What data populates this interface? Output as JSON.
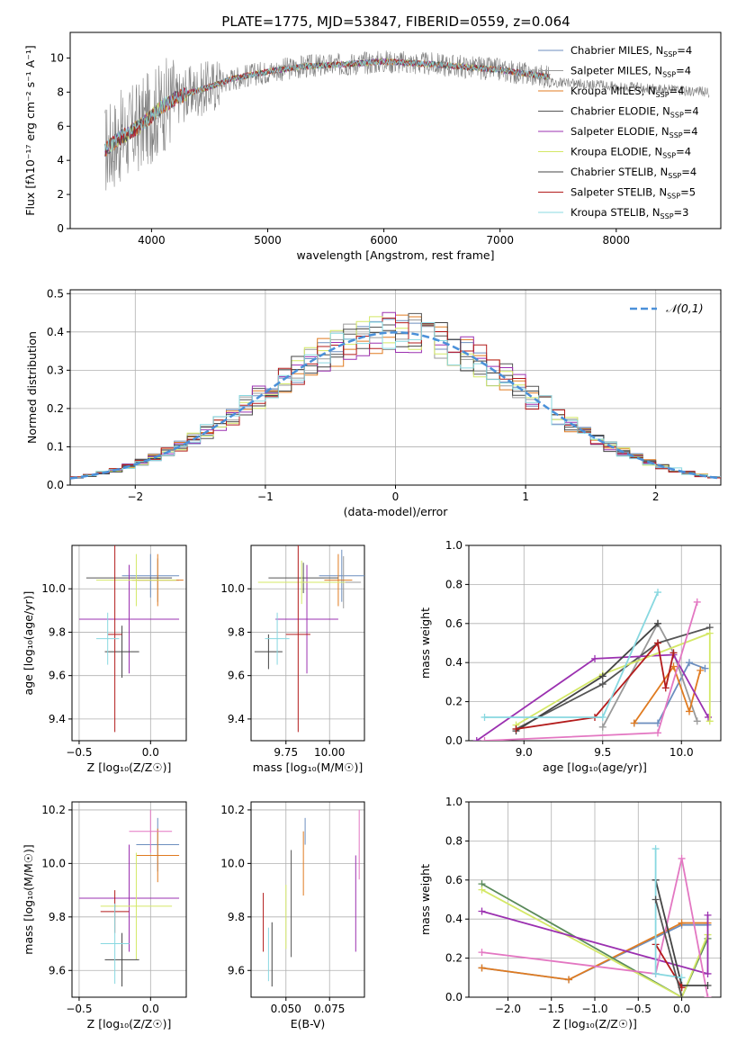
{
  "figure": {
    "title": "PLATE=1775, MJD=53847, FIBERID=0559, z=0.064"
  },
  "colors": {
    "models": [
      "#6c8ebf",
      "#9a9a9a",
      "#e07b20",
      "#555555",
      "#9b30b0",
      "#d4e866",
      "#444444",
      "#b31b1b",
      "#88d8e0"
    ],
    "pink": "#e377c2",
    "green": "#5a8a5a",
    "normal_curve": "#4a90d9",
    "grid": "#b0b0b0"
  },
  "chart_data": [
    {
      "id": "spectrum",
      "type": "line",
      "xlabel": "wavelength [Angstrom, rest frame]",
      "ylabel": "Flux [fλ10⁻¹⁷ erg cm⁻² s⁻¹ A⁻¹]",
      "xlim": [
        3300,
        8900
      ],
      "ylim": [
        0,
        11.5
      ],
      "xticks": [
        4000,
        5000,
        6000,
        7000,
        8000
      ],
      "yticks": [
        0,
        2,
        4,
        6,
        8,
        10
      ],
      "grid": false,
      "legend_position": "right",
      "continuum": {
        "x": [
          3600,
          3700,
          3800,
          3900,
          4000,
          4100,
          4200,
          4300,
          4500,
          4700,
          5000,
          5300,
          5600,
          6000,
          6500,
          7000,
          7400
        ],
        "y": [
          4.6,
          5.2,
          5.6,
          6.0,
          6.6,
          7.2,
          7.6,
          7.9,
          8.3,
          8.8,
          9.2,
          9.5,
          9.6,
          9.8,
          9.6,
          9.3,
          8.9
        ]
      },
      "observed_x_range": [
        3600,
        8800
      ],
      "model_x_range": [
        3600,
        7430
      ],
      "legend": [
        {
          "label": "Chabrier MILES, N",
          "sub": "SSP",
          "suffix": "=4"
        },
        {
          "label": "Salpeter MILES, N",
          "sub": "SSP",
          "suffix": "=4"
        },
        {
          "label": "Kroupa MILES, N",
          "sub": "SSP",
          "suffix": "=4"
        },
        {
          "label": "Chabrier ELODIE, N",
          "sub": "SSP",
          "suffix": "=4"
        },
        {
          "label": "Salpeter ELODIE, N",
          "sub": "SSP",
          "suffix": "=4"
        },
        {
          "label": "Kroupa ELODIE, N",
          "sub": "SSP",
          "suffix": "=4"
        },
        {
          "label": "Chabrier STELIB, N",
          "sub": "SSP",
          "suffix": "=4"
        },
        {
          "label": "Salpeter STELIB, N",
          "sub": "SSP",
          "suffix": "=5"
        },
        {
          "label": "Kroupa STELIB, N",
          "sub": "SSP",
          "suffix": "=3"
        }
      ]
    },
    {
      "id": "residuals",
      "type": "histogram",
      "xlabel": "(data-model)/error",
      "ylabel": "Normed distribution",
      "xlim": [
        -2.5,
        2.5
      ],
      "ylim": [
        0,
        0.51
      ],
      "xticks": [
        -2,
        -1,
        0,
        1,
        2
      ],
      "yticks": [
        0.0,
        0.1,
        0.2,
        0.3,
        0.4,
        0.5
      ],
      "grid": true,
      "legend": "𝒩(0,1)",
      "legend_position": "top-right",
      "bin_width": 0.1
    },
    {
      "id": "age-vs-Z",
      "type": "errorbar",
      "xlabel": "Z [log₁₀(Z/Z☉)]",
      "ylabel": "age  [log₁₀(age/yr)]",
      "xlim": [
        -0.55,
        0.25
      ],
      "ylim": [
        9.3,
        10.2
      ],
      "xticks": [
        -0.5,
        0.0
      ],
      "yticks": [
        9.4,
        9.6,
        9.8,
        10.0
      ],
      "points": [
        {
          "x": 0.0,
          "xerr": 0.2,
          "y": 10.06,
          "yerr": 0.1,
          "c": 0
        },
        {
          "x": 0.05,
          "xerr": 0.15,
          "y": 10.04,
          "yerr": 0.1,
          "c": 1
        },
        {
          "x": 0.05,
          "xerr": 0.18,
          "y": 10.04,
          "yerr": 0.12,
          "c": 2
        },
        {
          "x": -0.15,
          "xerr": 0.3,
          "y": 10.05,
          "yerr": 0.06,
          "c": 3
        },
        {
          "x": -0.15,
          "xerr": 0.35,
          "y": 9.86,
          "yerr": 0.25,
          "c": 4
        },
        {
          "x": -0.1,
          "xerr": 0.28,
          "y": 10.04,
          "yerr": 0.12,
          "c": 5
        },
        {
          "x": -0.2,
          "xerr": 0.12,
          "y": 9.71,
          "yerr": 0.12,
          "c": 6
        },
        {
          "x": -0.25,
          "xerr": 0.05,
          "y": 9.79,
          "yerr": 0.45,
          "c": 7
        },
        {
          "x": -0.3,
          "xerr": 0.08,
          "y": 9.77,
          "yerr": 0.12,
          "c": 8
        }
      ]
    },
    {
      "id": "age-vs-mass",
      "type": "errorbar",
      "xlabel": "mass [log₁₀(M/M☉)]",
      "ylabel": "",
      "xlim": [
        9.55,
        10.2
      ],
      "ylim": [
        9.3,
        10.2
      ],
      "xticks": [
        9.75,
        10.0
      ],
      "yticks": [
        9.4,
        9.6,
        9.8,
        10.0
      ],
      "points": [
        {
          "x": 10.07,
          "xerr": 0.13,
          "y": 10.06,
          "yerr": 0.12,
          "c": 0
        },
        {
          "x": 10.08,
          "xerr": 0.1,
          "y": 10.03,
          "yerr": 0.12,
          "c": 1
        },
        {
          "x": 10.05,
          "xerr": 0.08,
          "y": 10.04,
          "yerr": 0.12,
          "c": 2
        },
        {
          "x": 9.85,
          "xerr": 0.2,
          "y": 10.05,
          "yerr": 0.07,
          "c": 3
        },
        {
          "x": 9.87,
          "xerr": 0.18,
          "y": 9.86,
          "yerr": 0.25,
          "c": 4
        },
        {
          "x": 9.84,
          "xerr": 0.25,
          "y": 10.03,
          "yerr": 0.1,
          "c": 5
        },
        {
          "x": 9.65,
          "xerr": 0.08,
          "y": 9.71,
          "yerr": 0.08,
          "c": 6
        },
        {
          "x": 9.82,
          "xerr": 0.07,
          "y": 9.79,
          "yerr": 0.45,
          "c": 7
        },
        {
          "x": 9.7,
          "xerr": 0.07,
          "y": 9.77,
          "yerr": 0.12,
          "c": 8
        }
      ]
    },
    {
      "id": "massweight-vs-age",
      "type": "line",
      "xlabel": "age  [log₁₀(age/yr)]",
      "ylabel": "mass weight",
      "xlim": [
        8.65,
        10.25
      ],
      "ylim": [
        0,
        1
      ],
      "xticks": [
        9.0,
        9.5,
        10.0
      ],
      "yticks": [
        0.0,
        0.2,
        0.4,
        0.6,
        0.8,
        1.0
      ],
      "grid": true,
      "series": [
        {
          "c": 0,
          "x": [
            9.7,
            9.85,
            10.05,
            10.15
          ],
          "y": [
            0.09,
            0.09,
            0.4,
            0.37
          ]
        },
        {
          "c": 1,
          "x": [
            9.5,
            9.85,
            9.95,
            10.1
          ],
          "y": [
            0.07,
            0.6,
            0.45,
            0.1
          ]
        },
        {
          "c": 2,
          "x": [
            9.7,
            9.95,
            10.05,
            10.12
          ],
          "y": [
            0.09,
            0.38,
            0.15,
            0.36
          ]
        },
        {
          "c": 3,
          "x": [
            8.95,
            9.5,
            9.85,
            10.18
          ],
          "y": [
            0.06,
            0.29,
            0.5,
            0.58
          ]
        },
        {
          "c": 4,
          "x": [
            8.7,
            9.45,
            9.95,
            10.17
          ],
          "y": [
            0.0,
            0.42,
            0.44,
            0.12
          ]
        },
        {
          "c": 5,
          "x": [
            8.95,
            9.5,
            10.18,
            10.18
          ],
          "y": [
            0.08,
            0.34,
            0.55,
            0.1
          ]
        },
        {
          "c": 6,
          "x": [
            8.95,
            9.5,
            9.85
          ],
          "y": [
            0.05,
            0.33,
            0.6
          ]
        },
        {
          "c": 7,
          "x": [
            8.95,
            9.45,
            9.85,
            9.9,
            9.95
          ],
          "y": [
            0.06,
            0.12,
            0.5,
            0.27,
            0.45
          ]
        },
        {
          "c": 8,
          "x": [
            8.75,
            9.5,
            9.85
          ],
          "y": [
            0.12,
            0.12,
            0.76
          ]
        },
        {
          "c": "pink",
          "x": [
            8.75,
            9.85,
            10.1
          ],
          "y": [
            0.0,
            0.04,
            0.71
          ]
        }
      ]
    },
    {
      "id": "mass-vs-Z",
      "type": "errorbar",
      "xlabel": "Z [log₁₀(Z/Z☉)]",
      "ylabel": "mass [log₁₀(M/M☉)]",
      "xlim": [
        -0.55,
        0.25
      ],
      "ylim": [
        9.5,
        10.23
      ],
      "xticks": [
        -0.5,
        0.0
      ],
      "yticks": [
        9.6,
        9.8,
        10.0,
        10.2
      ],
      "points": [
        {
          "x": 0.05,
          "xerr": 0.15,
          "y": 10.07,
          "yerr": 0.1,
          "c": 0
        },
        {
          "x": 0.05,
          "xerr": 0.15,
          "y": 10.03,
          "yerr": 0.1,
          "c": 2
        },
        {
          "x": -0.15,
          "xerr": 0.35,
          "y": 9.87,
          "yerr": 0.2,
          "c": 4
        },
        {
          "x": -0.1,
          "xerr": 0.25,
          "y": 9.84,
          "yerr": 0.2,
          "c": 5
        },
        {
          "x": -0.2,
          "xerr": 0.12,
          "y": 9.64,
          "yerr": 0.1,
          "c": 6
        },
        {
          "x": -0.25,
          "xerr": 0.1,
          "y": 9.82,
          "yerr": 0.08,
          "c": 7
        },
        {
          "x": -0.25,
          "xerr": 0.1,
          "y": 9.7,
          "yerr": 0.15,
          "c": 8
        },
        {
          "x": 0.0,
          "xerr": 0.15,
          "y": 10.12,
          "yerr": 0.08,
          "c": "pink"
        }
      ]
    },
    {
      "id": "mass-vs-ebv",
      "type": "errorbar",
      "xlabel": "E(B-V)",
      "ylabel": "",
      "xlim": [
        0.03,
        0.095
      ],
      "ylim": [
        9.5,
        10.23
      ],
      "xticks": [
        0.05,
        0.075
      ],
      "yticks": [
        9.6,
        9.8,
        10.0,
        10.2
      ],
      "points": [
        {
          "x": 0.037,
          "xerr": 0,
          "y": 9.78,
          "yerr": 0.11,
          "c": 7
        },
        {
          "x": 0.04,
          "xerr": 0,
          "y": 9.66,
          "yerr": 0.1,
          "c": 8
        },
        {
          "x": 0.042,
          "xerr": 0,
          "y": 9.66,
          "yerr": 0.12,
          "c": 6
        },
        {
          "x": 0.05,
          "xerr": 0,
          "y": 9.8,
          "yerr": 0.12,
          "c": 5
        },
        {
          "x": 0.053,
          "xerr": 0,
          "y": 9.85,
          "yerr": 0.2,
          "c": 3
        },
        {
          "x": 0.06,
          "xerr": 0,
          "y": 10.0,
          "yerr": 0.12,
          "c": 2
        },
        {
          "x": 0.061,
          "xerr": 0,
          "y": 10.12,
          "yerr": 0.05,
          "c": 0
        },
        {
          "x": 0.09,
          "xerr": 0,
          "y": 9.85,
          "yerr": 0.18,
          "c": 4
        },
        {
          "x": 0.092,
          "xerr": 0,
          "y": 10.07,
          "yerr": 0.13,
          "c": "pink"
        }
      ]
    },
    {
      "id": "massweight-vs-Z",
      "type": "line",
      "xlabel": "Z [log₁₀(Z/Z☉)]",
      "ylabel": "mass weight",
      "xlim": [
        -2.45,
        0.45
      ],
      "ylim": [
        0,
        1
      ],
      "xticks": [
        -2.0,
        -1.5,
        -1.0,
        -0.5,
        0.0
      ],
      "yticks": [
        0.0,
        0.2,
        0.4,
        0.6,
        0.8,
        1.0
      ],
      "grid": true,
      "series": [
        {
          "c": 0,
          "x": [
            -2.3,
            -1.3,
            0.0,
            0.3
          ],
          "y": [
            0.15,
            0.09,
            0.37,
            0.37
          ]
        },
        {
          "c": 2,
          "x": [
            -2.3,
            -1.3,
            0.0,
            0.3
          ],
          "y": [
            0.15,
            0.09,
            0.38,
            0.38
          ]
        },
        {
          "c": "green",
          "x": [
            -2.3,
            0.0,
            0.3
          ],
          "y": [
            0.58,
            0.0,
            0.3
          ]
        },
        {
          "c": 5,
          "x": [
            -2.3,
            0.0,
            0.3
          ],
          "y": [
            0.55,
            0.0,
            0.32
          ]
        },
        {
          "c": 4,
          "x": [
            -2.3,
            0.3,
            0.3
          ],
          "y": [
            0.44,
            0.12,
            0.42
          ]
        },
        {
          "c": "pink",
          "x": [
            -2.3,
            -0.3,
            0.0,
            0.3
          ],
          "y": [
            0.23,
            0.12,
            0.71,
            0.0
          ]
        },
        {
          "c": 6,
          "x": [
            -0.3,
            0.0,
            0.3
          ],
          "y": [
            0.6,
            0.06,
            0.06
          ]
        },
        {
          "c": 7,
          "x": [
            -0.3,
            0.0,
            0.0
          ],
          "y": [
            0.27,
            0.05,
            0.05
          ]
        },
        {
          "c": 8,
          "x": [
            -0.3,
            -0.3,
            0.0
          ],
          "y": [
            0.76,
            0.12,
            0.1
          ]
        },
        {
          "c": 3,
          "x": [
            -0.3,
            0.0
          ],
          "y": [
            0.5,
            0.0
          ]
        }
      ]
    }
  ]
}
